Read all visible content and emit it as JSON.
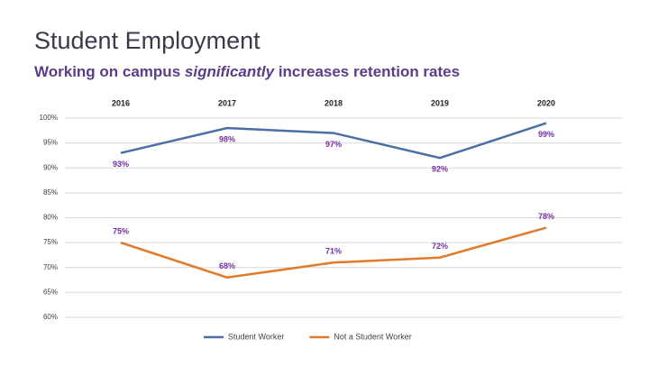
{
  "chart_data": {
    "type": "line",
    "title": "Student Employment",
    "subtitle": [
      "Working on campus",
      "significantly",
      "increases retention rates"
    ],
    "categories": [
      "2016",
      "2017",
      "2018",
      "2019",
      "2020"
    ],
    "series": [
      {
        "name": "Student Worker",
        "color": "#4a6fa5",
        "values": [
          93,
          98,
          97,
          92,
          99
        ],
        "value_labels": [
          "93%",
          "98%",
          "97%",
          "92%",
          "99%"
        ]
      },
      {
        "name": "Not a Student Worker",
        "color": "#e07b2a",
        "values": [
          75,
          68,
          71,
          72,
          78
        ],
        "value_labels": [
          "75%",
          "68%",
          "71%",
          "72%",
          "78%"
        ]
      }
    ],
    "ylim": [
      60,
      100
    ],
    "yticks": [
      {
        "value": 60,
        "label": "60%"
      },
      {
        "value": 65,
        "label": "65%"
      },
      {
        "value": 70,
        "label": "70%"
      },
      {
        "value": 75,
        "label": "75%"
      },
      {
        "value": 80,
        "label": "80%"
      },
      {
        "value": 85,
        "label": "85%"
      },
      {
        "value": 90,
        "label": "90%"
      },
      {
        "value": 95,
        "label": "95%"
      },
      {
        "value": 100,
        "label": "100%"
      }
    ],
    "grid": true,
    "legend": "bottom",
    "label_color": "#7030a0"
  }
}
